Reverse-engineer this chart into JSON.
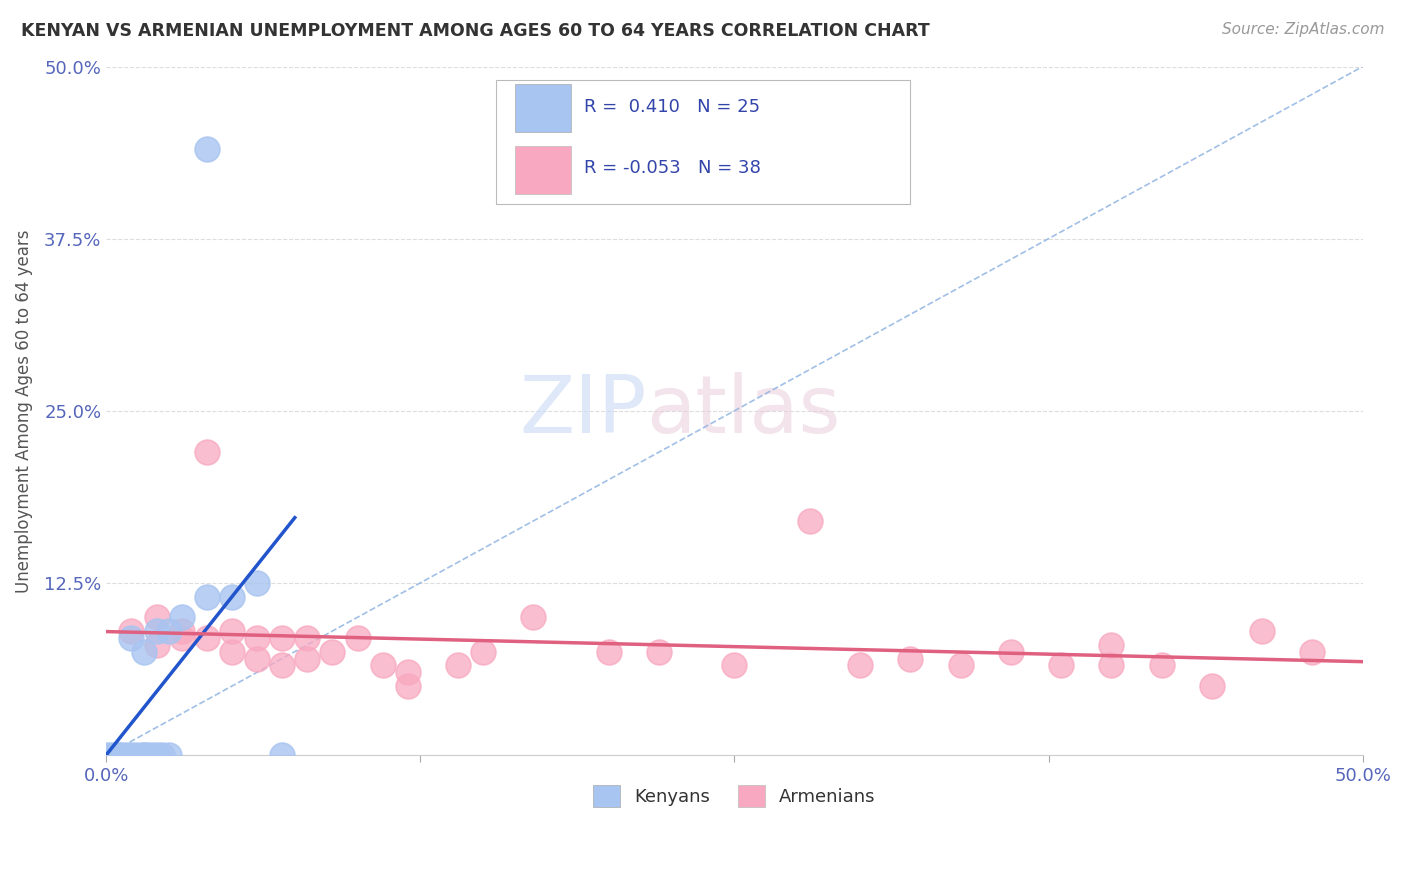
{
  "title": "KENYAN VS ARMENIAN UNEMPLOYMENT AMONG AGES 60 TO 64 YEARS CORRELATION CHART",
  "source": "Source: ZipAtlas.com",
  "ylabel": "Unemployment Among Ages 60 to 64 years",
  "xlim": [
    0.0,
    0.5
  ],
  "ylim": [
    0.0,
    0.5
  ],
  "xticks": [
    0.0,
    0.125,
    0.25,
    0.375,
    0.5
  ],
  "xticklabels": [
    "0.0%",
    "",
    "",
    "",
    "50.0%"
  ],
  "yticks": [
    0.0,
    0.125,
    0.25,
    0.375,
    0.5
  ],
  "yticklabels": [
    "",
    "12.5%",
    "25.0%",
    "37.5%",
    "50.0%"
  ],
  "kenyan_R": 0.41,
  "kenyan_N": 25,
  "armenian_R": -0.053,
  "armenian_N": 38,
  "kenyan_color": "#a8c4f0",
  "armenian_color": "#f8a8c0",
  "kenyan_line_color": "#2255cc",
  "armenian_line_color": "#e06080",
  "diagonal_color": "#8ab0e0",
  "kenyan_scatter": [
    [
      0.0,
      0.0
    ],
    [
      0.002,
      0.0
    ],
    [
      0.004,
      0.0
    ],
    [
      0.005,
      0.0
    ],
    [
      0.006,
      0.0
    ],
    [
      0.008,
      0.0
    ],
    [
      0.01,
      0.0
    ],
    [
      0.012,
      0.0
    ],
    [
      0.014,
      0.0
    ],
    [
      0.015,
      0.0
    ],
    [
      0.016,
      0.0
    ],
    [
      0.018,
      0.0
    ],
    [
      0.02,
      0.0
    ],
    [
      0.022,
      0.0
    ],
    [
      0.025,
      0.0
    ],
    [
      0.015,
      0.075
    ],
    [
      0.02,
      0.09
    ],
    [
      0.025,
      0.09
    ],
    [
      0.03,
      0.1
    ],
    [
      0.04,
      0.115
    ],
    [
      0.05,
      0.115
    ],
    [
      0.06,
      0.125
    ],
    [
      0.07,
      0.0
    ],
    [
      0.04,
      0.44
    ],
    [
      0.01,
      0.085
    ]
  ],
  "armenian_scatter": [
    [
      0.01,
      0.09
    ],
    [
      0.02,
      0.1
    ],
    [
      0.02,
      0.08
    ],
    [
      0.03,
      0.085
    ],
    [
      0.03,
      0.09
    ],
    [
      0.04,
      0.085
    ],
    [
      0.04,
      0.22
    ],
    [
      0.05,
      0.09
    ],
    [
      0.05,
      0.075
    ],
    [
      0.06,
      0.085
    ],
    [
      0.06,
      0.07
    ],
    [
      0.07,
      0.085
    ],
    [
      0.07,
      0.065
    ],
    [
      0.08,
      0.085
    ],
    [
      0.08,
      0.07
    ],
    [
      0.09,
      0.075
    ],
    [
      0.1,
      0.085
    ],
    [
      0.11,
      0.065
    ],
    [
      0.12,
      0.06
    ],
    [
      0.12,
      0.05
    ],
    [
      0.14,
      0.065
    ],
    [
      0.15,
      0.075
    ],
    [
      0.17,
      0.1
    ],
    [
      0.2,
      0.075
    ],
    [
      0.22,
      0.075
    ],
    [
      0.25,
      0.065
    ],
    [
      0.28,
      0.17
    ],
    [
      0.3,
      0.065
    ],
    [
      0.32,
      0.07
    ],
    [
      0.34,
      0.065
    ],
    [
      0.36,
      0.075
    ],
    [
      0.38,
      0.065
    ],
    [
      0.4,
      0.08
    ],
    [
      0.4,
      0.065
    ],
    [
      0.42,
      0.065
    ],
    [
      0.44,
      0.05
    ],
    [
      0.46,
      0.09
    ],
    [
      0.48,
      0.075
    ]
  ],
  "watermark_zip": "ZIP",
  "watermark_atlas": "atlas",
  "background_color": "#ffffff",
  "grid_color": "#dddddd"
}
